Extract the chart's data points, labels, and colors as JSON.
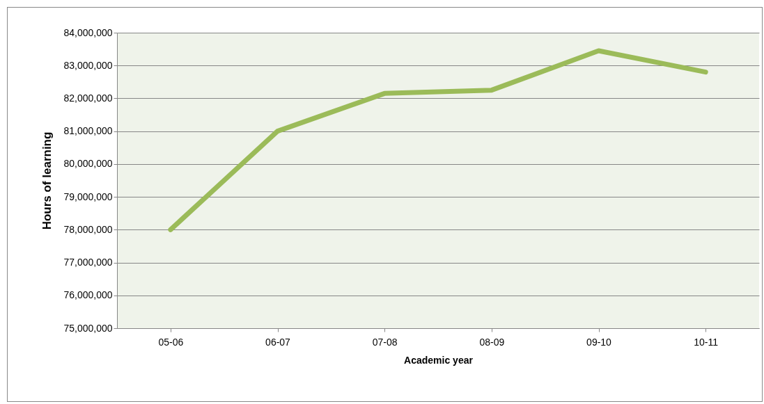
{
  "chart_data": {
    "type": "line",
    "xlabel": "Academic year",
    "ylabel": "Hours of learning",
    "categories": [
      "05-06",
      "06-07",
      "07-08",
      "08-09",
      "09-10",
      "10-11"
    ],
    "series": [
      {
        "color": "#9bbb59",
        "values": [
          78000000,
          81000000,
          82150000,
          82250000,
          83450000,
          82800000
        ]
      }
    ],
    "ylim": [
      75000000,
      84000000
    ],
    "yticks": [
      {
        "value": 75000000,
        "label": "75,000,000"
      },
      {
        "value": 76000000,
        "label": "76,000,000"
      },
      {
        "value": 77000000,
        "label": "77,000,000"
      },
      {
        "value": 78000000,
        "label": "78,000,000"
      },
      {
        "value": 79000000,
        "label": "79,000,000"
      },
      {
        "value": 80000000,
        "label": "80,000,000"
      },
      {
        "value": 81000000,
        "label": "81,000,000"
      },
      {
        "value": 82000000,
        "label": "82,000,000"
      },
      {
        "value": 83000000,
        "label": "83,000,000"
      },
      {
        "value": 84000000,
        "label": "84,000,000"
      }
    ],
    "grid": "y",
    "line_style": "solid",
    "marker": "none"
  }
}
